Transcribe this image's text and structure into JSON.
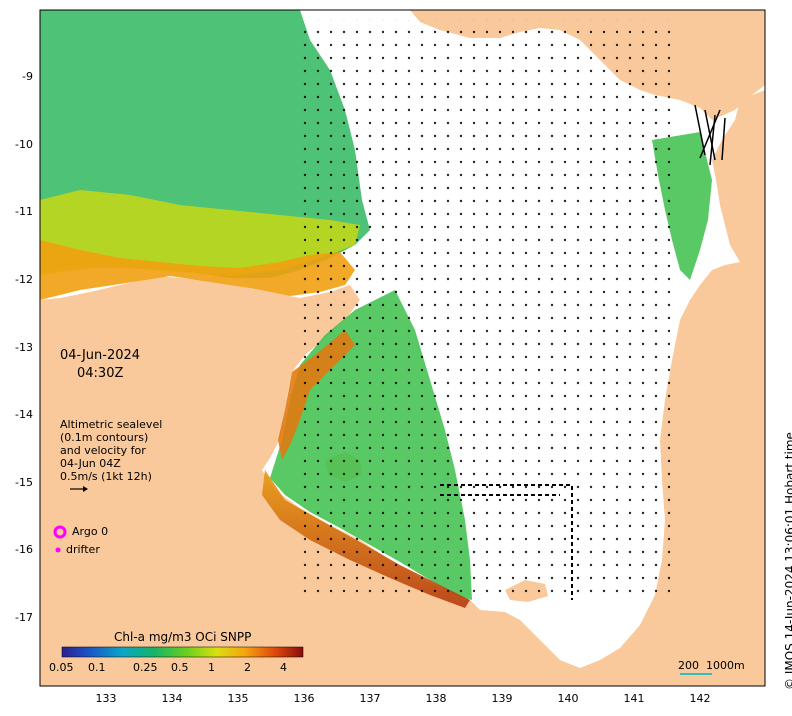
{
  "map": {
    "date": "04-Jun-2024",
    "time": "04:30Z",
    "sealevel_note": [
      "Altimetric sealevel",
      "(0.1m contours)",
      "and velocity for",
      "04-Jun 04Z",
      "0.5m/s (1kt 12h)"
    ],
    "argo_label": "Argo 0",
    "drifter_label": "drifter",
    "colorbar_title": "Chl-a mg/m3 OCi SNPP",
    "colorbar_ticks": [
      "0.05",
      "0.1",
      "0.25",
      "0.5",
      "1",
      "2",
      "4"
    ],
    "scale_bar": "200  1000m",
    "credit": "© IMOS 14-Jun-2024 13:06:01 Hobart time",
    "lat_labels": [
      "-9",
      "-10",
      "-11",
      "-12",
      "-13",
      "-14",
      "-15",
      "-16",
      "-17"
    ],
    "lon_labels": [
      "133",
      "134",
      "135",
      "136",
      "137",
      "138",
      "139",
      "140",
      "141",
      "142"
    ],
    "colors": {
      "land": "#f9c99b",
      "sea": "#ffffff",
      "argo": "#ff00ff",
      "drifter": "#ff00ff"
    }
  }
}
